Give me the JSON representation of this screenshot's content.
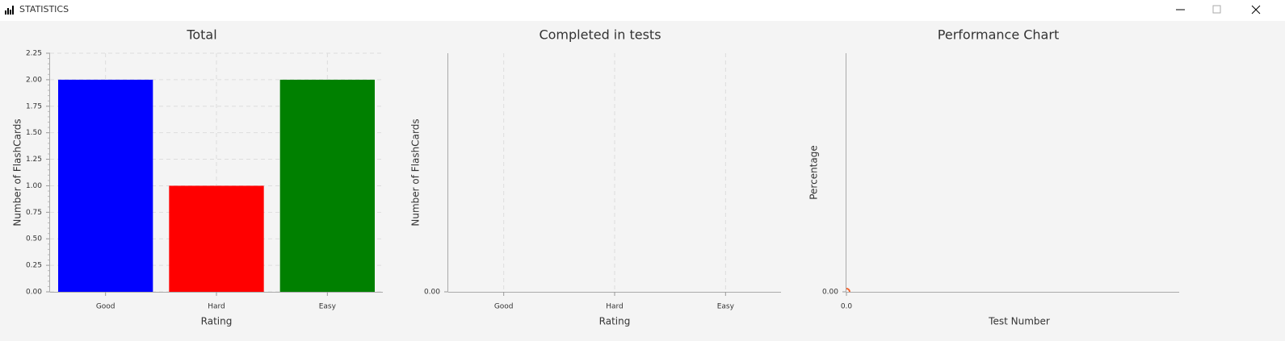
{
  "window": {
    "title": "STATISTICS"
  },
  "chart_data": [
    {
      "type": "bar",
      "title": "Total",
      "xlabel": "Rating",
      "ylabel": "Number of FlashCards",
      "categories": [
        "Good",
        "Hard",
        "Easy"
      ],
      "values": [
        2,
        1,
        2
      ],
      "colors": [
        "#0000ff",
        "#ff0000",
        "#008000"
      ],
      "ylim": [
        0,
        2.25
      ],
      "yticks": [
        {
          "value": 0,
          "label": "0.00"
        },
        {
          "value": 0.25,
          "label": "0.25"
        },
        {
          "value": 0.5,
          "label": "0.50"
        },
        {
          "value": 0.75,
          "label": "0.75"
        },
        {
          "value": 1,
          "label": "1.00"
        },
        {
          "value": 1.25,
          "label": "1.25"
        },
        {
          "value": 1.5,
          "label": "1.50"
        },
        {
          "value": 1.75,
          "label": "1.75"
        },
        {
          "value": 2,
          "label": "2.00"
        },
        {
          "value": 2.25,
          "label": "2.25"
        }
      ],
      "grid": true
    },
    {
      "type": "bar",
      "title": "Completed in tests",
      "xlabel": "Rating",
      "ylabel": "Number of FlashCards",
      "categories": [
        "Good",
        "Hard",
        "Easy"
      ],
      "values": [
        null,
        null,
        null
      ],
      "yticks": [
        {
          "value": 0,
          "label": "0.00"
        }
      ],
      "grid": true
    },
    {
      "type": "line",
      "title": "Performance Chart",
      "xlabel": "Test Number",
      "ylabel": "Percentage",
      "x": [
        0
      ],
      "values": [
        0
      ],
      "color": "#f3622d",
      "xticks": [
        {
          "value": 0,
          "label": "0.0"
        }
      ],
      "yticks": [
        {
          "value": 0,
          "label": "0.00"
        }
      ],
      "grid": false
    }
  ]
}
